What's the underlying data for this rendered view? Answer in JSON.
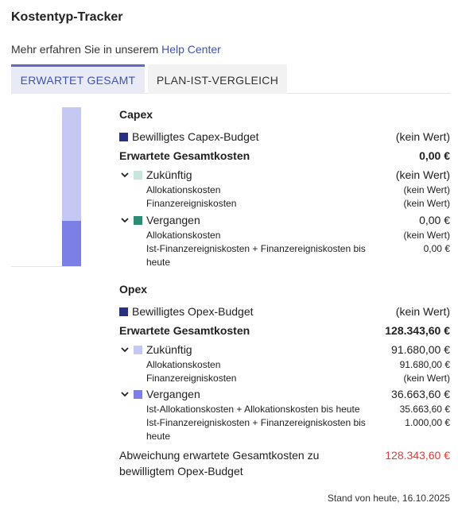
{
  "header": {
    "title": "Kostentyp-Tracker",
    "help_prefix": "Mehr erfahren Sie in unserem ",
    "help_link": "Help Center"
  },
  "tabs": [
    {
      "label": "ERWARTET GESAMT",
      "active": true
    },
    {
      "label": "PLAN-IST-VERGLEICH",
      "active": false
    }
  ],
  "colors": {
    "budget": "#283080",
    "capex_future": "#c8e6e0",
    "capex_past": "#2e8b74",
    "opex_future": "#c5c8f2",
    "opex_past": "#7b7fe6",
    "deviation": "#e53935"
  },
  "bar_chart": {
    "segments": [
      {
        "name": "Zukünftig",
        "value": 91680.0
      },
      {
        "name": "Vergangen",
        "value": 36663.6
      }
    ]
  },
  "capex": {
    "title": "Capex",
    "budget_label": "Bewilligtes Capex-Budget",
    "budget_value": "(kein Wert)",
    "total_label": "Erwartete Gesamtkosten",
    "total_value": "0,00 €",
    "future": {
      "label": "Zukünftig",
      "value": "(kein Wert)",
      "items": [
        {
          "label": "Allokationskosten",
          "value": "(kein Wert)"
        },
        {
          "label": "Finanzereigniskosten",
          "value": "(kein Wert)"
        }
      ]
    },
    "past": {
      "label": "Vergangen",
      "value": "0,00 €",
      "items": [
        {
          "label": "Allokationskosten",
          "value": "(kein Wert)"
        },
        {
          "label": "Ist-Finanzereigniskosten + Finanzereigniskosten bis heute",
          "value": "0,00 €"
        }
      ]
    }
  },
  "opex": {
    "title": "Opex",
    "budget_label": "Bewilligtes Opex-Budget",
    "budget_value": "(kein Wert)",
    "total_label": "Erwartete Gesamtkosten",
    "total_value": "128.343,60 €",
    "future": {
      "label": "Zukünftig",
      "value": "91.680,00 €",
      "items": [
        {
          "label": "Allokationskosten",
          "value": "91.680,00 €"
        },
        {
          "label": "Finanzereigniskosten",
          "value": "(kein Wert)"
        }
      ]
    },
    "past": {
      "label": "Vergangen",
      "value": "36.663,60 €",
      "items": [
        {
          "label": "Ist-Allokationskosten + Allokationskosten bis heute",
          "value": "35.663,60 €"
        },
        {
          "label": "Ist-Finanzereigniskosten + Finanzereigniskosten bis heute",
          "value": "1.000,00 €"
        }
      ]
    },
    "deviation_label": "Abweichung erwartete Gesamtkosten zu bewilligtem Opex-Budget",
    "deviation_value": "128.343,60 €"
  },
  "footer": {
    "status": "Stand von heute, 16.10.2025"
  }
}
